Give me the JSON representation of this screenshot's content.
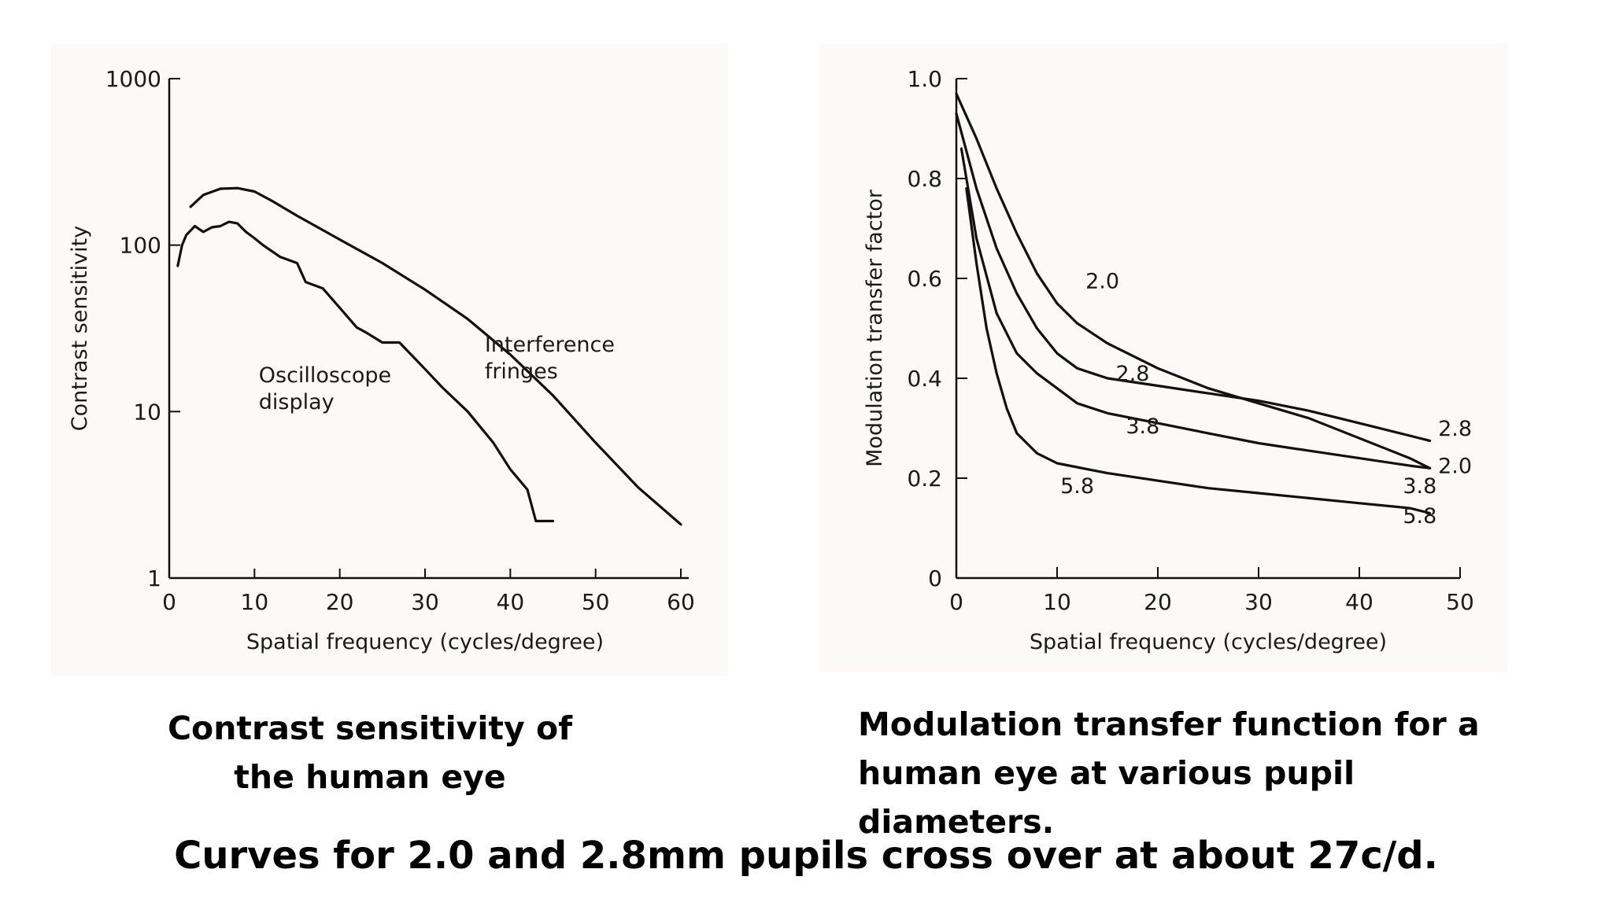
{
  "chart_data": [
    {
      "type": "line",
      "xlabel": "Spatial frequency (cycles/degree)",
      "ylabel": "Contrast sensitivity",
      "xlim": [
        0,
        60
      ],
      "ylim": [
        1,
        1000
      ],
      "y_scale": "log",
      "x_ticks": [
        "0",
        "10",
        "20",
        "30",
        "40",
        "50",
        "60"
      ],
      "y_ticks": [
        {
          "value": 1,
          "label": "1"
        },
        {
          "value": 10,
          "label": "10"
        },
        {
          "value": 100,
          "label": "100"
        },
        {
          "value": 1000,
          "label": "1000"
        }
      ],
      "grid": false,
      "series": [
        {
          "name": "Interference fringes",
          "x": [
            2.5,
            4,
            6,
            8,
            10,
            12,
            15,
            20,
            25,
            30,
            35,
            40,
            45,
            50,
            55,
            60
          ],
          "y": [
            170,
            200,
            218,
            220,
            210,
            185,
            150,
            108,
            78,
            54,
            36,
            22,
            12.5,
            6.5,
            3.5,
            2.1
          ],
          "label_pos": [
            37,
            23
          ]
        },
        {
          "name": "Oscilloscope display",
          "x": [
            1,
            1.5,
            2,
            3,
            4,
            5,
            6,
            7,
            8,
            9,
            10,
            11,
            13,
            15,
            16,
            18,
            20,
            22,
            23,
            25,
            27,
            30,
            32,
            35,
            38,
            40,
            42,
            43,
            45
          ],
          "y": [
            75,
            100,
            115,
            130,
            120,
            128,
            130,
            138,
            135,
            120,
            110,
            100,
            85,
            78,
            60,
            55,
            42,
            32,
            30,
            26,
            26,
            18,
            14,
            10,
            6.5,
            4.5,
            3.4,
            2.2,
            2.2
          ],
          "label_pos": [
            10.5,
            15
          ]
        }
      ],
      "caption": "Contrast sensitivity of the human eye"
    },
    {
      "type": "line",
      "xlabel": "Spatial frequency (cycles/degree)",
      "ylabel": "Modulation transfer factor",
      "xlim": [
        0,
        50
      ],
      "ylim": [
        0,
        1.0
      ],
      "x_ticks": [
        "0",
        "10",
        "20",
        "30",
        "40",
        "50"
      ],
      "y_ticks": [
        "0",
        "0.2",
        "0.4",
        "0.6",
        "0.8",
        "1.0"
      ],
      "grid": false,
      "series": [
        {
          "name": "2.0",
          "x": [
            0,
            2,
            4,
            6,
            8,
            10,
            12,
            15,
            20,
            25,
            30,
            35,
            40,
            45,
            47
          ],
          "y": [
            0.97,
            0.88,
            0.78,
            0.69,
            0.61,
            0.55,
            0.51,
            0.47,
            0.42,
            0.38,
            0.35,
            0.32,
            0.28,
            0.24,
            0.22
          ],
          "inline_label": "2.0",
          "inline_pos": [
            14.5,
            0.58
          ],
          "end_label": "2.0",
          "end_pos": [
            49.5,
            0.21
          ]
        },
        {
          "name": "2.8",
          "x": [
            0,
            2,
            4,
            6,
            8,
            10,
            12,
            15,
            20,
            25,
            30,
            35,
            40,
            45,
            47
          ],
          "y": [
            0.93,
            0.78,
            0.66,
            0.57,
            0.5,
            0.45,
            0.42,
            0.4,
            0.385,
            0.37,
            0.355,
            0.335,
            0.31,
            0.285,
            0.275
          ],
          "inline_label": "2.8",
          "inline_pos": [
            17.5,
            0.395
          ],
          "end_label": "2.8",
          "end_pos": [
            49.5,
            0.285
          ]
        },
        {
          "name": "3.8",
          "x": [
            0.5,
            2,
            4,
            6,
            8,
            10,
            12,
            15,
            20,
            25,
            30,
            35,
            40,
            45,
            47
          ],
          "y": [
            0.86,
            0.68,
            0.53,
            0.45,
            0.41,
            0.38,
            0.35,
            0.33,
            0.31,
            0.29,
            0.27,
            0.255,
            0.24,
            0.225,
            0.22
          ],
          "inline_label": "3.8",
          "inline_pos": [
            18.5,
            0.29
          ],
          "end_label": "3.8",
          "end_pos": [
            46,
            0.17
          ]
        },
        {
          "name": "5.8",
          "x": [
            1,
            2,
            3,
            4,
            5,
            6,
            8,
            10,
            15,
            20,
            25,
            30,
            35,
            40,
            45,
            47
          ],
          "y": [
            0.78,
            0.63,
            0.5,
            0.41,
            0.34,
            0.29,
            0.25,
            0.23,
            0.21,
            0.195,
            0.18,
            0.17,
            0.16,
            0.15,
            0.14,
            0.13
          ],
          "inline_label": "5.8",
          "inline_pos": [
            12,
            0.17
          ],
          "end_label": "5.8",
          "end_pos": [
            46,
            0.11
          ]
        }
      ],
      "caption": "Modulation transfer function for a human eye at various pupil diameters."
    }
  ],
  "captions": {
    "left": [
      "Contrast sensitivity of",
      "the human eye"
    ],
    "right": [
      "Modulation transfer function for a",
      "human eye at various pupil diameters."
    ]
  },
  "footer_note": "Curves for 2.0 and 2.8mm pupils cross over at about 27c/d."
}
